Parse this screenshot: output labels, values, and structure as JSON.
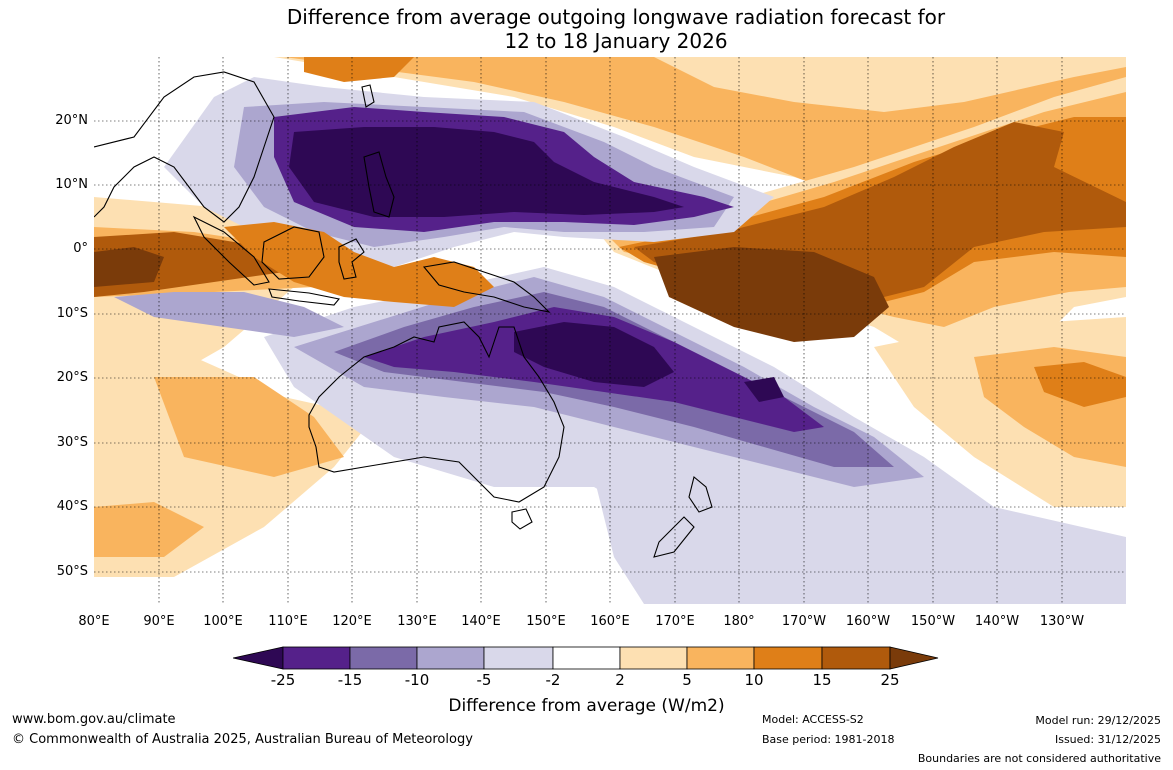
{
  "title_line1": "Difference from average outgoing longwave radiation forecast for",
  "title_line2": "12 to 18 January 2026",
  "map": {
    "lat_labels": [
      "20°N",
      "10°N",
      "0°",
      "10°S",
      "20°S",
      "30°S",
      "40°S",
      "50°S"
    ],
    "lon_labels": [
      "80°E",
      "90°E",
      "100°E",
      "110°E",
      "120°E",
      "130°E",
      "140°E",
      "150°E",
      "160°E",
      "170°E",
      "180°",
      "170°W",
      "160°W",
      "150°W",
      "140°W",
      "130°W"
    ],
    "region": "Western Pacific, Maritime Continent and Australia"
  },
  "legend": {
    "ticks": [
      "-25",
      "-15",
      "-10",
      "-5",
      "-2",
      "2",
      "5",
      "10",
      "15",
      "25"
    ],
    "colors": [
      "#2e0854",
      "#55218a",
      "#7b6aa8",
      "#aca6cf",
      "#d9d8ea",
      "#ffffff",
      "#fde0b2",
      "#f9b45e",
      "#df7f18",
      "#b05a0c",
      "#7a3b0a"
    ],
    "title": "Difference from average (W/m2)"
  },
  "footer": {
    "url": "www.bom.gov.au/climate",
    "copyright": "© Commonwealth of Australia 2025, Australian Bureau of Meteorology",
    "model": "Model: ACCESS-S2",
    "base_period": "Base period: 1981-2018",
    "model_run": "Model run: 29/12/2025",
    "issued": "Issued: 31/12/2025",
    "disclaimer": "Boundaries are not considered authoritative"
  }
}
